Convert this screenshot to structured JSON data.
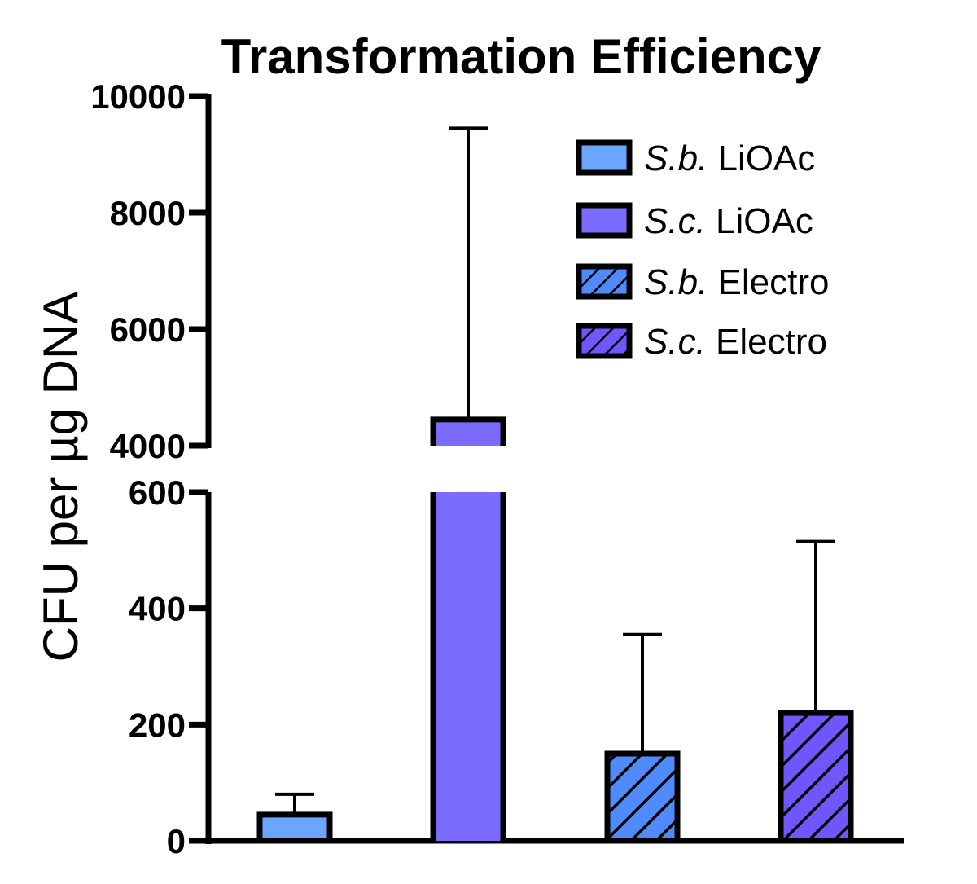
{
  "chart_data": {
    "type": "bar",
    "title": "Transformation Efficiency",
    "xlabel": "",
    "ylabel": "CFU per µg DNA",
    "axis_break": {
      "from": 600,
      "to": 4000
    },
    "ylim_lower": [
      0,
      600
    ],
    "ylim_upper": [
      4000,
      10000
    ],
    "yticks_lower": [
      "0",
      "200",
      "400",
      "600"
    ],
    "yticks_upper": [
      "4000",
      "6000",
      "8000",
      "10000"
    ],
    "grid": false,
    "legend_position": "top-right",
    "series": [
      {
        "name": "S.b. LiOAc",
        "strain": "S.b.",
        "method": "LiOAc",
        "value": 45,
        "error": 80,
        "color": "#6aa6ff",
        "hatch": false
      },
      {
        "name": "S.c. LiOAc",
        "strain": "S.c.",
        "method": "LiOAc",
        "value": 4450,
        "error": 9450,
        "color": "#7b6cff",
        "hatch": false
      },
      {
        "name": "S.b. Electro",
        "strain": "S.b.",
        "method": "Electro",
        "value": 150,
        "error": 355,
        "color": "#4f8bff",
        "hatch": true
      },
      {
        "name": "S.c. Electro",
        "strain": "S.c.",
        "method": "Electro",
        "value": 220,
        "error": 515,
        "color": "#6f56ff",
        "hatch": true
      }
    ]
  }
}
